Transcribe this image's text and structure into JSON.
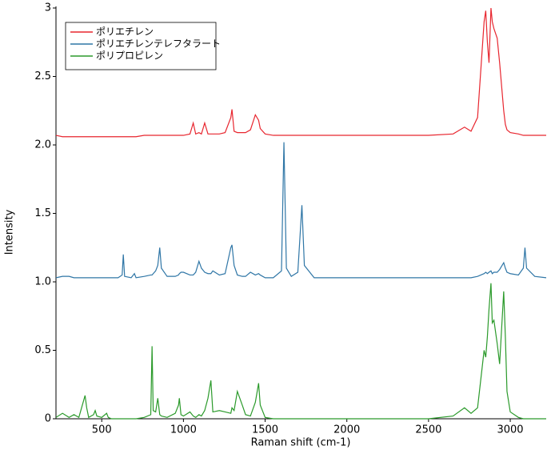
{
  "chart_data": {
    "type": "line",
    "x_label": "Raman shift (cm-1)",
    "y_label": "Intensity",
    "x": [
      220,
      260,
      300,
      330,
      360,
      398,
      408,
      420,
      450,
      460,
      470,
      500,
      530,
      540,
      560,
      600,
      625,
      632,
      640,
      680,
      700,
      710,
      760,
      800,
      808,
      815,
      830,
      843,
      855,
      865,
      900,
      950,
      970,
      975,
      985,
      1000,
      1040,
      1060,
      1075,
      1095,
      1110,
      1130,
      1150,
      1168,
      1180,
      1220,
      1255,
      1290,
      1297,
      1310,
      1330,
      1360,
      1380,
      1410,
      1440,
      1460,
      1470,
      1500,
      1550,
      1600,
      1615,
      1630,
      1660,
      1700,
      1725,
      1740,
      1800,
      2000,
      2500,
      2650,
      2720,
      2760,
      2800,
      2840,
      2850,
      2860,
      2870,
      2882,
      2890,
      2900,
      2920,
      2935,
      2960,
      2970,
      2980,
      3000,
      3050,
      3080,
      3090,
      3100,
      3150,
      3220
    ],
    "series": [
      {
        "name": "ポリエチレン",
        "color": "#e8262f",
        "values": [
          2.07,
          2.06,
          2.06,
          2.06,
          2.06,
          2.06,
          2.06,
          2.06,
          2.06,
          2.06,
          2.06,
          2.06,
          2.06,
          2.06,
          2.06,
          2.06,
          2.06,
          2.06,
          2.06,
          2.06,
          2.06,
          2.06,
          2.07,
          2.07,
          2.07,
          2.07,
          2.07,
          2.07,
          2.07,
          2.07,
          2.07,
          2.07,
          2.07,
          2.07,
          2.07,
          2.07,
          2.08,
          2.16,
          2.08,
          2.09,
          2.08,
          2.16,
          2.08,
          2.08,
          2.08,
          2.08,
          2.09,
          2.2,
          2.26,
          2.1,
          2.09,
          2.09,
          2.09,
          2.11,
          2.22,
          2.18,
          2.12,
          2.08,
          2.07,
          2.07,
          2.07,
          2.07,
          2.07,
          2.07,
          2.07,
          2.07,
          2.07,
          2.07,
          2.07,
          2.08,
          2.13,
          2.1,
          2.2,
          2.9,
          2.98,
          2.75,
          2.6,
          3.0,
          2.9,
          2.85,
          2.78,
          2.6,
          2.25,
          2.15,
          2.11,
          2.09,
          2.08,
          2.07,
          2.07,
          2.07,
          2.07,
          2.07
        ]
      },
      {
        "name": "ポリエチレンテレフタラート",
        "color": "#2f76a6",
        "values": [
          1.03,
          1.04,
          1.04,
          1.03,
          1.03,
          1.03,
          1.03,
          1.03,
          1.03,
          1.03,
          1.03,
          1.03,
          1.03,
          1.03,
          1.03,
          1.03,
          1.05,
          1.2,
          1.04,
          1.03,
          1.06,
          1.03,
          1.04,
          1.05,
          1.05,
          1.06,
          1.08,
          1.12,
          1.25,
          1.1,
          1.04,
          1.04,
          1.05,
          1.06,
          1.07,
          1.07,
          1.05,
          1.05,
          1.07,
          1.15,
          1.1,
          1.07,
          1.06,
          1.06,
          1.08,
          1.05,
          1.06,
          1.25,
          1.27,
          1.12,
          1.05,
          1.04,
          1.04,
          1.07,
          1.05,
          1.06,
          1.05,
          1.03,
          1.03,
          1.08,
          2.02,
          1.1,
          1.04,
          1.07,
          1.56,
          1.12,
          1.03,
          1.03,
          1.03,
          1.03,
          1.03,
          1.03,
          1.04,
          1.06,
          1.07,
          1.06,
          1.07,
          1.08,
          1.06,
          1.07,
          1.07,
          1.09,
          1.14,
          1.1,
          1.07,
          1.06,
          1.05,
          1.1,
          1.25,
          1.1,
          1.04,
          1.03
        ]
      },
      {
        "name": "ポリプロピレン",
        "color": "#2b9a2b",
        "values": [
          0.01,
          0.04,
          0.01,
          0.03,
          0.01,
          0.17,
          0.08,
          0.01,
          0.03,
          0.06,
          0.02,
          0.01,
          0.04,
          0.01,
          0.0,
          0.0,
          0.0,
          0.0,
          0.0,
          0.0,
          0.0,
          0.0,
          0.01,
          0.03,
          0.53,
          0.06,
          0.05,
          0.15,
          0.03,
          0.02,
          0.01,
          0.04,
          0.1,
          0.15,
          0.03,
          0.02,
          0.05,
          0.02,
          0.01,
          0.03,
          0.02,
          0.06,
          0.15,
          0.28,
          0.05,
          0.06,
          0.05,
          0.04,
          0.08,
          0.06,
          0.2,
          0.1,
          0.03,
          0.02,
          0.12,
          0.26,
          0.1,
          0.01,
          0.0,
          0.0,
          0.0,
          0.0,
          0.0,
          0.0,
          0.0,
          0.0,
          0.0,
          0.0,
          0.0,
          0.02,
          0.08,
          0.04,
          0.08,
          0.5,
          0.45,
          0.6,
          0.8,
          0.99,
          0.7,
          0.72,
          0.55,
          0.4,
          0.93,
          0.6,
          0.2,
          0.05,
          0.01,
          0.0,
          0.0,
          0.0,
          0.0,
          0.0
        ]
      }
    ],
    "xlim": [
      220,
      3220
    ],
    "ylim": [
      0,
      3
    ],
    "xticks": [
      500,
      1000,
      1500,
      2000,
      2500,
      3000
    ],
    "yticks": [
      0,
      0.5,
      {
        "value": 1,
        "label": "1.0"
      },
      1.5,
      {
        "value": 2,
        "label": "2.0"
      },
      2.5,
      3
    ],
    "legend": "upper left",
    "grid": false
  }
}
